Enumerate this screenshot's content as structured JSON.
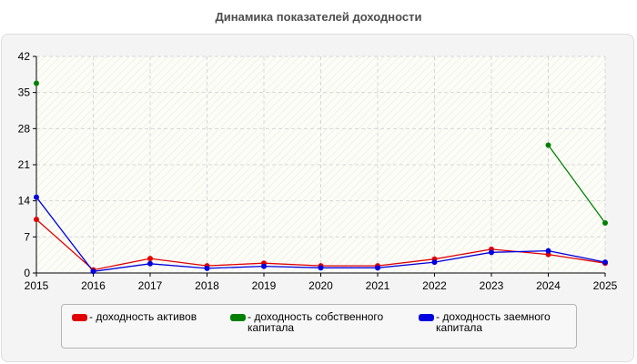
{
  "chart_data": {
    "type": "line",
    "title": "Динамика показателей доходности",
    "categories": [
      "2015",
      "2016",
      "2017",
      "2018",
      "2019",
      "2020",
      "2021",
      "2022",
      "2023",
      "2024",
      "2025"
    ],
    "ylim": [
      0,
      42
    ],
    "yticks": [
      "0",
      "7",
      "14",
      "21",
      "28",
      "35",
      "42"
    ],
    "grid": true,
    "legend_position": "bottom",
    "series": [
      {
        "name": "- доходность активов",
        "color": "#e00000",
        "values": [
          10.4,
          0.6,
          2.8,
          1.4,
          1.9,
          1.4,
          1.4,
          2.7,
          4.6,
          3.6,
          1.9
        ]
      },
      {
        "name": "- доходность собственного капитала",
        "color": "#008000",
        "values": [
          36.8,
          null,
          null,
          null,
          null,
          null,
          null,
          null,
          null,
          24.8,
          9.7
        ]
      },
      {
        "name": "- доходность заемного капитала",
        "color": "#0000e0",
        "values": [
          14.7,
          0.3,
          1.8,
          0.9,
          1.3,
          1.0,
          1.0,
          2.1,
          4.0,
          4.3,
          2.1
        ]
      }
    ]
  }
}
